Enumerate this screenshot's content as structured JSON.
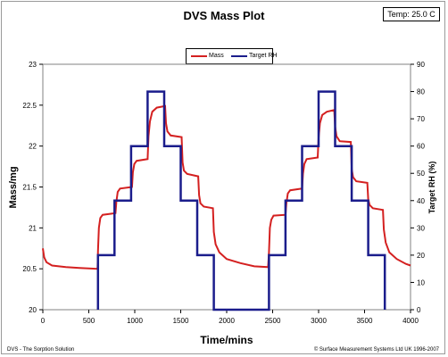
{
  "header": {
    "temp_label": "Temp: 25.0 C"
  },
  "footer": {
    "left": "DVS - The Sorption Solution",
    "right": "© Surface Measurement Systems Ltd UK 1996-2007"
  },
  "chart_data": {
    "type": "line",
    "title": "DVS Mass Plot",
    "xlabel": "Time/mins",
    "ylabel": "Mass/mg",
    "y2label": "Target RH (%)",
    "xlim": [
      0,
      4000
    ],
    "ylim": [
      20,
      23
    ],
    "y2lim": [
      0,
      90
    ],
    "xticks": [
      0,
      500,
      1000,
      1500,
      2000,
      2500,
      3000,
      3500,
      4000
    ],
    "yticks": [
      20,
      20.5,
      21,
      21.5,
      22,
      22.5,
      23
    ],
    "y2ticks": [
      0,
      10,
      20,
      30,
      40,
      50,
      60,
      70,
      80,
      90
    ],
    "grid": false,
    "legend": "top-center",
    "series": [
      {
        "name": "Mass",
        "color": "#d42020",
        "axis": "left",
        "points": [
          [
            0,
            20.75
          ],
          [
            15,
            20.64
          ],
          [
            40,
            20.58
          ],
          [
            100,
            20.54
          ],
          [
            250,
            20.52
          ],
          [
            400,
            20.51
          ],
          [
            595,
            20.5
          ],
          [
            600,
            20.72
          ],
          [
            610,
            21.0
          ],
          [
            625,
            21.12
          ],
          [
            650,
            21.16
          ],
          [
            790,
            21.18
          ],
          [
            800,
            21.32
          ],
          [
            815,
            21.44
          ],
          [
            840,
            21.48
          ],
          [
            970,
            21.5
          ],
          [
            980,
            21.68
          ],
          [
            995,
            21.78
          ],
          [
            1020,
            21.82
          ],
          [
            1140,
            21.84
          ],
          [
            1150,
            22.12
          ],
          [
            1165,
            22.3
          ],
          [
            1190,
            22.42
          ],
          [
            1240,
            22.47
          ],
          [
            1330,
            22.49
          ],
          [
            1340,
            22.28
          ],
          [
            1355,
            22.18
          ],
          [
            1390,
            22.13
          ],
          [
            1510,
            22.11
          ],
          [
            1520,
            21.8
          ],
          [
            1535,
            21.7
          ],
          [
            1570,
            21.66
          ],
          [
            1690,
            21.63
          ],
          [
            1700,
            21.4
          ],
          [
            1715,
            21.3
          ],
          [
            1750,
            21.26
          ],
          [
            1850,
            21.24
          ],
          [
            1860,
            20.95
          ],
          [
            1880,
            20.8
          ],
          [
            1920,
            20.7
          ],
          [
            2000,
            20.62
          ],
          [
            2150,
            20.57
          ],
          [
            2300,
            20.53
          ],
          [
            2450,
            20.52
          ],
          [
            2460,
            20.7
          ],
          [
            2470,
            21.0
          ],
          [
            2485,
            21.1
          ],
          [
            2510,
            21.15
          ],
          [
            2640,
            21.16
          ],
          [
            2650,
            21.3
          ],
          [
            2665,
            21.42
          ],
          [
            2690,
            21.46
          ],
          [
            2820,
            21.48
          ],
          [
            2830,
            21.66
          ],
          [
            2845,
            21.78
          ],
          [
            2870,
            21.84
          ],
          [
            2990,
            21.86
          ],
          [
            3000,
            22.1
          ],
          [
            3015,
            22.28
          ],
          [
            3040,
            22.38
          ],
          [
            3090,
            22.42
          ],
          [
            3170,
            22.44
          ],
          [
            3180,
            22.24
          ],
          [
            3195,
            22.12
          ],
          [
            3230,
            22.06
          ],
          [
            3350,
            22.05
          ],
          [
            3360,
            21.72
          ],
          [
            3375,
            21.62
          ],
          [
            3410,
            21.57
          ],
          [
            3530,
            21.55
          ],
          [
            3540,
            21.35
          ],
          [
            3555,
            21.28
          ],
          [
            3590,
            21.24
          ],
          [
            3700,
            21.22
          ],
          [
            3710,
            20.98
          ],
          [
            3730,
            20.82
          ],
          [
            3770,
            20.7
          ],
          [
            3850,
            20.62
          ],
          [
            3950,
            20.56
          ],
          [
            4000,
            20.54
          ]
        ]
      },
      {
        "name": "Target RH",
        "color": "#1b1d8c",
        "axis": "right",
        "points": [
          [
            600,
            0
          ],
          [
            600,
            20
          ],
          [
            780,
            20
          ],
          [
            780,
            40
          ],
          [
            960,
            40
          ],
          [
            960,
            60
          ],
          [
            1140,
            60
          ],
          [
            1140,
            80
          ],
          [
            1320,
            80
          ],
          [
            1320,
            60
          ],
          [
            1500,
            60
          ],
          [
            1500,
            40
          ],
          [
            1680,
            40
          ],
          [
            1680,
            20
          ],
          [
            1860,
            20
          ],
          [
            1860,
            0
          ],
          [
            2460,
            0
          ],
          [
            2460,
            20
          ],
          [
            2640,
            20
          ],
          [
            2640,
            40
          ],
          [
            2820,
            40
          ],
          [
            2820,
            60
          ],
          [
            3000,
            60
          ],
          [
            3000,
            80
          ],
          [
            3180,
            80
          ],
          [
            3180,
            60
          ],
          [
            3360,
            60
          ],
          [
            3360,
            40
          ],
          [
            3540,
            40
          ],
          [
            3540,
            20
          ],
          [
            3720,
            20
          ],
          [
            3720,
            0
          ]
        ]
      }
    ]
  }
}
